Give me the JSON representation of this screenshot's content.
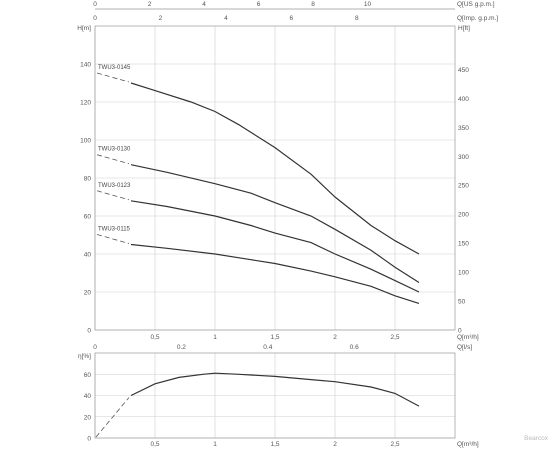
{
  "chart_data": [
    {
      "type": "line",
      "title": "",
      "xlabel": "Q[m³/h]",
      "ylabel": "H[m]",
      "y2label": "H[ft]",
      "top_axis_1": {
        "label": "Q[US g.p.m.]",
        "ticks": [
          "0",
          "2",
          "4",
          "6",
          "8",
          "10"
        ]
      },
      "top_axis_2": {
        "label": "Q[Imp. g.p.m.]",
        "ticks": [
          "0",
          "2",
          "4",
          "6",
          "8"
        ]
      },
      "xlim": [
        0,
        3
      ],
      "ylim": [
        0,
        160
      ],
      "y2lim": [
        0,
        525
      ],
      "x_ticks": [
        "0",
        "0,5",
        "1",
        "1,5",
        "2",
        "2,5"
      ],
      "y_ticks": [
        "0",
        "20",
        "40",
        "60",
        "80",
        "100",
        "120",
        "140"
      ],
      "y2_ticks": [
        "0",
        "50",
        "100",
        "150",
        "200",
        "250",
        "300",
        "350",
        "400",
        "450"
      ],
      "grid": true,
      "series": [
        {
          "name": "TWU3-0145",
          "x": [
            0.3,
            0.5,
            0.8,
            1.0,
            1.2,
            1.5,
            1.8,
            2.0,
            2.3,
            2.5,
            2.7
          ],
          "y": [
            130,
            126,
            120,
            115,
            108,
            96,
            82,
            70,
            55,
            47,
            40
          ]
        },
        {
          "name": "TWU3-0130",
          "x": [
            0.3,
            0.6,
            1.0,
            1.3,
            1.5,
            1.8,
            2.0,
            2.3,
            2.5,
            2.7
          ],
          "y": [
            87,
            83,
            77,
            72,
            67,
            60,
            53,
            42,
            33,
            25
          ]
        },
        {
          "name": "TWU3-0123",
          "x": [
            0.3,
            0.6,
            1.0,
            1.3,
            1.5,
            1.8,
            2.0,
            2.3,
            2.5,
            2.7
          ],
          "y": [
            68,
            65,
            60,
            55,
            51,
            46,
            40,
            32,
            26,
            20
          ]
        },
        {
          "name": "TWU3-0115",
          "x": [
            0.3,
            0.6,
            1.0,
            1.3,
            1.5,
            1.8,
            2.0,
            2.3,
            2.5,
            2.7
          ],
          "y": [
            45,
            43,
            40,
            37,
            35,
            31,
            28,
            23,
            18,
            14
          ]
        }
      ]
    },
    {
      "type": "line",
      "title": "",
      "xlabel": "Q[m³/h]",
      "ylabel": "η[%]",
      "top_axis": {
        "label": "Q[l/s]",
        "ticks": [
          "0",
          "0.2",
          "0.4",
          "0.6"
        ]
      },
      "xlim": [
        0,
        3
      ],
      "ylim": [
        0,
        80
      ],
      "x_ticks": [
        "0",
        "0,5",
        "1",
        "1,5",
        "2",
        "2,5"
      ],
      "y_ticks": [
        "0",
        "20",
        "40",
        "60"
      ],
      "grid": true,
      "series": [
        {
          "name": "",
          "x": [
            0.3,
            0.5,
            0.7,
            0.9,
            1.0,
            1.2,
            1.5,
            1.8,
            2.0,
            2.3,
            2.5,
            2.7
          ],
          "y": [
            40,
            51,
            57,
            60,
            61,
            60,
            58,
            55,
            53,
            48,
            42,
            30
          ]
        }
      ]
    }
  ],
  "watermark": "Bearcox"
}
